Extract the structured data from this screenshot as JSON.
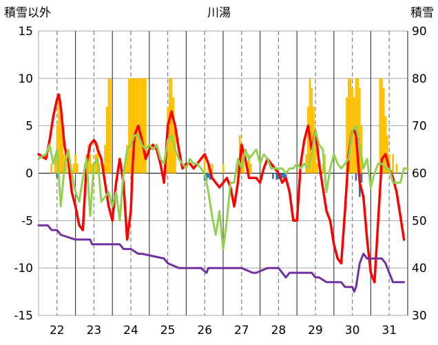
{
  "chart_data": {
    "type": "line",
    "title": "川湯",
    "y_left_label": "積雪以外",
    "y_right_label": "積雪",
    "y_left_range": [
      -15,
      15
    ],
    "y_right_range": [
      30,
      90
    ],
    "y_left_ticks": [
      "15",
      "10",
      "5",
      "0",
      "-5",
      "-10",
      "-15"
    ],
    "y_right_ticks": [
      "90",
      "80",
      "70",
      "60",
      "50",
      "40",
      "30"
    ],
    "x_range": [
      21.5,
      31.5
    ],
    "x_ticks": [
      "22",
      "23",
      "24",
      "25",
      "26",
      "27",
      "28",
      "29",
      "30",
      "31"
    ],
    "grid": true,
    "colors": {
      "temperature": "#ff0000",
      "wind": "#92d050",
      "snow_depth": "#7030a0",
      "precip_positive": "#ffc000",
      "precip_negative": "#2e75b6"
    },
    "series": [
      {
        "key": "temperature",
        "axis": "left",
        "x": [
          21.5,
          21.7,
          21.8,
          21.9,
          22.0,
          22.05,
          22.1,
          22.2,
          22.25,
          22.3,
          22.4,
          22.5,
          22.6,
          22.7,
          22.8,
          22.9,
          23.0,
          23.05,
          23.1,
          23.2,
          23.3,
          23.4,
          23.5,
          23.6,
          23.7,
          23.8,
          23.9,
          24.0,
          24.05,
          24.1,
          24.2,
          24.3,
          24.4,
          24.5,
          24.6,
          24.7,
          24.8,
          24.9,
          25.0,
          25.1,
          25.2,
          25.3,
          25.4,
          25.5,
          25.6,
          25.7,
          25.8,
          25.9,
          26.0,
          26.1,
          26.2,
          26.3,
          26.4,
          26.5,
          26.6,
          26.7,
          26.8,
          26.9,
          27.0,
          27.1,
          27.2,
          27.3,
          27.4,
          27.5,
          27.6,
          27.7,
          27.8,
          27.9,
          28.0,
          28.1,
          28.2,
          28.3,
          28.4,
          28.5,
          28.6,
          28.7,
          28.8,
          28.9,
          29.0,
          29.1,
          29.2,
          29.3,
          29.4,
          29.5,
          29.6,
          29.7,
          29.8,
          29.9,
          30.0,
          30.05,
          30.1,
          30.2,
          30.3,
          30.4,
          30.5,
          30.6,
          30.7,
          30.8,
          30.9,
          31.0,
          31.1,
          31.2,
          31.3,
          31.4
        ],
        "values": [
          2.0,
          1.5,
          3.5,
          6.0,
          7.8,
          8.3,
          7.0,
          3.0,
          2.0,
          1.5,
          -2.0,
          -3.5,
          -5.5,
          -6.0,
          1.0,
          3.0,
          3.5,
          3.2,
          2.5,
          1.5,
          -1.0,
          -3.5,
          -5.0,
          -1.0,
          1.5,
          -1.0,
          -7.0,
          -4.0,
          1.0,
          4.0,
          5.0,
          3.5,
          1.5,
          2.5,
          3.0,
          2.5,
          1.0,
          -1.0,
          5.0,
          6.5,
          5.0,
          2.5,
          0.5,
          1.0,
          1.0,
          0.5,
          1.0,
          1.5,
          2.0,
          1.0,
          -0.5,
          -1.0,
          -1.5,
          -1.0,
          -0.5,
          -1.5,
          -3.5,
          -1.0,
          3.0,
          1.5,
          -0.5,
          -0.5,
          -0.5,
          -1.0,
          0.5,
          1.5,
          1.0,
          0.5,
          0.0,
          -1.0,
          -0.5,
          -2.0,
          -5.0,
          -5.0,
          1.0,
          3.5,
          5.0,
          2.5,
          4.5,
          1.0,
          -1.5,
          -4.0,
          -5.0,
          -7.5,
          -9.0,
          -9.5,
          -4.0,
          2.0,
          4.5,
          4.5,
          4.0,
          -1.0,
          -2.5,
          -7.0,
          -10.5,
          -11.5,
          -5.0,
          1.5,
          2.0,
          0.5,
          -0.5,
          -2.0,
          -4.5,
          -7.0
        ]
      },
      {
        "key": "wind",
        "axis": "left",
        "x": [
          21.5,
          21.6,
          21.7,
          21.8,
          21.9,
          22.0,
          22.1,
          22.2,
          22.3,
          22.4,
          22.5,
          22.6,
          22.7,
          22.8,
          22.9,
          23.0,
          23.1,
          23.2,
          23.3,
          23.4,
          23.5,
          23.6,
          23.7,
          23.8,
          23.9,
          24.0,
          24.1,
          24.2,
          24.3,
          24.4,
          24.5,
          24.6,
          24.7,
          24.8,
          24.9,
          25.0,
          25.1,
          25.2,
          25.3,
          25.4,
          25.5,
          25.6,
          25.7,
          25.8,
          25.9,
          26.0,
          26.1,
          26.2,
          26.3,
          26.4,
          26.5,
          26.6,
          26.7,
          26.8,
          26.9,
          27.0,
          27.1,
          27.2,
          27.3,
          27.4,
          27.5,
          27.6,
          27.7,
          27.8,
          27.9,
          28.0,
          28.1,
          28.2,
          28.3,
          28.4,
          28.5,
          28.6,
          28.7,
          28.8,
          28.9,
          29.0,
          29.1,
          29.2,
          29.3,
          29.4,
          29.5,
          29.6,
          29.7,
          29.8,
          29.9,
          30.0,
          30.1,
          30.2,
          30.3,
          30.4,
          30.5,
          30.6,
          30.7,
          30.8,
          30.9,
          31.0,
          31.1,
          31.2,
          31.3,
          31.4,
          31.5
        ],
        "values": [
          1.5,
          1.8,
          2.0,
          3.0,
          1.0,
          2.5,
          -3.5,
          0.5,
          2.5,
          0.0,
          -2.0,
          -3.0,
          -0.5,
          1.5,
          -4.5,
          1.0,
          1.5,
          -3.0,
          -2.5,
          -2.0,
          -3.5,
          -2.0,
          -5.0,
          0.0,
          2.5,
          3.0,
          4.0,
          4.0,
          3.0,
          2.5,
          3.0,
          2.5,
          3.0,
          1.5,
          1.0,
          3.5,
          4.0,
          2.5,
          1.5,
          1.0,
          0.5,
          1.5,
          1.0,
          1.0,
          0.5,
          0.0,
          -2.0,
          -4.5,
          -6.5,
          -4.0,
          -8.0,
          -5.0,
          -1.0,
          -1.0,
          1.5,
          0.5,
          2.5,
          1.5,
          2.0,
          2.5,
          1.0,
          2.0,
          1.5,
          0.5,
          0.5,
          0.5,
          0.5,
          0.0,
          0.5,
          0.5,
          1.0,
          0.5,
          1.0,
          0.5,
          2.0,
          4.5,
          3.0,
          2.5,
          -2.0,
          0.5,
          2.0,
          1.0,
          0.5,
          1.0,
          1.5,
          4.5,
          5.0,
          3.0,
          0.5,
          1.5,
          -1.5,
          0.0,
          1.0,
          1.0,
          0.5,
          0.5,
          -1.0,
          -1.0,
          -1.0,
          0.5,
          0.5
        ]
      },
      {
        "key": "snow_depth",
        "axis": "right",
        "x": [
          21.5,
          21.75,
          21.85,
          22.0,
          22.1,
          22.5,
          22.9,
          22.95,
          23.4,
          23.7,
          23.8,
          23.9,
          24.0,
          24.2,
          24.3,
          24.9,
          25.0,
          25.3,
          25.9,
          26.05,
          26.1,
          26.2,
          26.5,
          26.9,
          27.0,
          27.3,
          27.4,
          27.7,
          27.8,
          28.0,
          28.1,
          28.2,
          28.3,
          28.5,
          28.8,
          28.9,
          29.0,
          29.1,
          29.3,
          29.5,
          29.7,
          29.8,
          30.0,
          30.05,
          30.1,
          30.2,
          30.3,
          30.4,
          30.6,
          30.8,
          30.9,
          31.0,
          31.1,
          31.4
        ],
        "values": [
          49,
          49,
          48,
          48,
          47,
          46,
          46,
          45,
          45,
          45,
          44,
          44,
          44,
          43,
          43,
          42,
          41,
          40,
          40,
          39,
          40,
          40,
          40,
          40,
          40,
          39,
          39,
          40,
          40,
          40,
          39,
          38,
          39,
          39,
          39,
          39,
          38,
          38,
          37,
          37,
          37,
          36,
          36,
          35,
          36,
          41,
          43,
          42,
          42,
          42,
          41,
          39,
          37,
          37
        ]
      },
      {
        "key": "precip_positive",
        "type": "bar",
        "axis": "left",
        "x": [
          21.85,
          21.95,
          22.0,
          22.05,
          22.1,
          22.15,
          22.2,
          22.25,
          22.45,
          22.5,
          22.55,
          22.75,
          22.8,
          22.85,
          22.9,
          22.95,
          23.05,
          23.1,
          23.15,
          23.25,
          23.3,
          23.35,
          23.4,
          23.45,
          23.85,
          23.9,
          23.95,
          24.0,
          24.05,
          24.1,
          24.15,
          24.2,
          24.25,
          24.3,
          24.35,
          24.4,
          24.95,
          25.0,
          25.05,
          25.1,
          25.15,
          25.2,
          26.0,
          26.1,
          26.2,
          26.5,
          26.9,
          26.95,
          27.0,
          27.05,
          27.2,
          27.25,
          28.75,
          28.8,
          28.85,
          28.9,
          28.95,
          29.0,
          29.05,
          29.2,
          29.25,
          29.85,
          29.9,
          29.95,
          30.0,
          30.05,
          30.1,
          30.15,
          30.2,
          30.25,
          30.75,
          30.8,
          30.85,
          30.9,
          30.95,
          31.0,
          31.1,
          31.2
        ],
        "values": [
          1,
          2,
          5,
          8,
          6,
          4,
          2,
          1,
          1,
          2,
          1,
          1,
          2,
          3,
          2,
          1,
          2,
          3,
          1,
          1,
          3,
          7,
          10,
          10,
          1,
          3,
          10,
          10,
          10,
          10,
          10,
          10,
          10,
          10,
          10,
          10,
          3,
          7,
          10,
          10,
          8,
          5,
          2,
          1,
          1,
          1,
          1,
          4,
          3,
          2,
          2,
          1,
          2,
          7,
          10,
          9,
          7,
          3,
          1,
          1,
          2,
          8,
          10,
          10,
          9,
          8,
          10,
          10,
          9,
          5,
          10,
          10,
          9,
          6,
          4,
          2,
          2,
          1
        ]
      },
      {
        "key": "precip_negative",
        "type": "bar",
        "axis": "left",
        "x": [
          22.0,
          26.0,
          26.05,
          26.1,
          26.15,
          27.85,
          27.95,
          28.0,
          28.05,
          28.1,
          28.15,
          28.2,
          30.1,
          30.2,
          30.25
        ],
        "values": [
          -0.5,
          -0.8,
          -0.8,
          -0.5,
          -0.7,
          -0.6,
          -0.7,
          -0.6,
          -0.5,
          -0.5,
          -0.7,
          -0.9,
          -0.8,
          -2.5,
          -1.0
        ]
      }
    ]
  }
}
